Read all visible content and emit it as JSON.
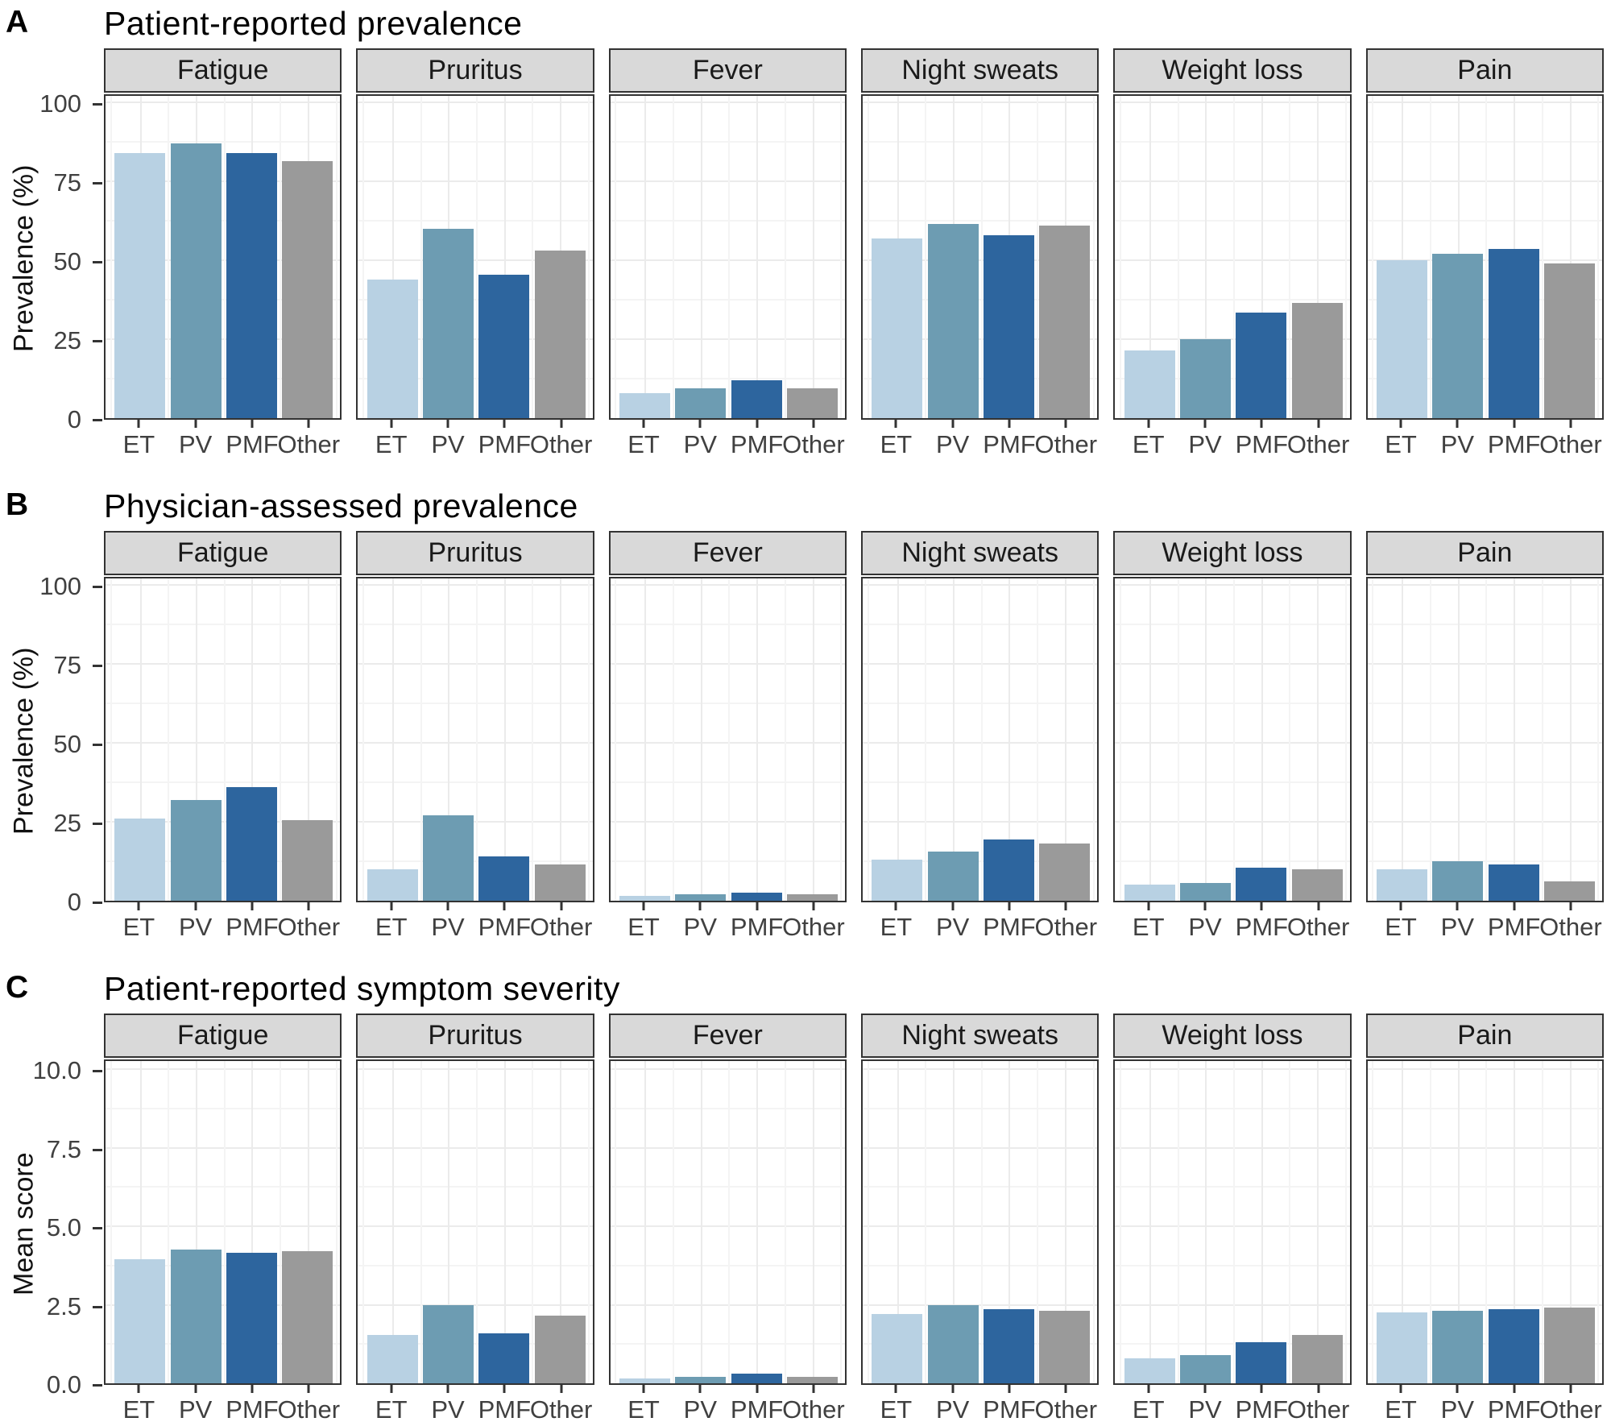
{
  "colors": {
    "series": [
      "#B8D1E3",
      "#6D9CB2",
      "#2D659E",
      "#9A9A9A"
    ],
    "strip_bg": "#D9D9D9",
    "strip_border": "#333333",
    "panel_border": "#333333",
    "grid_major": "#EBEBEB",
    "grid_minor": "#F4F4F4",
    "axis_text": "#404040",
    "tick_mark": "#333333",
    "title_text": "#000000"
  },
  "chart_data": [
    {
      "panel": "A",
      "type": "bar",
      "title": "Patient-reported prevalence",
      "ylabel": "Prevalence (%)",
      "ylim": [
        0,
        100
      ],
      "yticks": [
        0,
        25,
        50,
        75,
        100
      ],
      "ytick_labels": [
        "0",
        "25",
        "50",
        "75",
        "100"
      ],
      "grid": true,
      "legend": "none",
      "categories": [
        "ET",
        "PV",
        "PMF",
        "Other"
      ],
      "facets": [
        {
          "label": "Fatigue",
          "values": [
            84,
            87,
            84,
            81.5
          ]
        },
        {
          "label": "Pruritus",
          "values": [
            44,
            60,
            45.5,
            53
          ]
        },
        {
          "label": "Fever",
          "values": [
            8,
            9.5,
            12,
            9.5
          ]
        },
        {
          "label": "Night sweats",
          "values": [
            57,
            61.5,
            58,
            61
          ]
        },
        {
          "label": "Weight loss",
          "values": [
            21.5,
            25,
            33.5,
            36.5
          ]
        },
        {
          "label": "Pain",
          "values": [
            50,
            52,
            53.5,
            49
          ]
        }
      ]
    },
    {
      "panel": "B",
      "type": "bar",
      "title": "Physician-assessed prevalence",
      "ylabel": "Prevalence (%)",
      "ylim": [
        0,
        100
      ],
      "yticks": [
        0,
        25,
        50,
        75,
        100
      ],
      "ytick_labels": [
        "0",
        "25",
        "50",
        "75",
        "100"
      ],
      "grid": true,
      "legend": "none",
      "categories": [
        "ET",
        "PV",
        "PMF",
        "Other"
      ],
      "facets": [
        {
          "label": "Fatigue",
          "values": [
            26,
            32,
            36,
            25.5
          ]
        },
        {
          "label": "Pruritus",
          "values": [
            10,
            27,
            14,
            11.5
          ]
        },
        {
          "label": "Fever",
          "values": [
            1.5,
            2,
            2.5,
            2
          ]
        },
        {
          "label": "Night sweats",
          "values": [
            13,
            15.5,
            19.5,
            18
          ]
        },
        {
          "label": "Weight loss",
          "values": [
            5,
            5.5,
            10.5,
            10
          ]
        },
        {
          "label": "Pain",
          "values": [
            10,
            12.5,
            11.5,
            6
          ]
        }
      ]
    },
    {
      "panel": "C",
      "type": "bar",
      "title": "Patient-reported symptom severity",
      "ylabel": "Mean score",
      "ylim": [
        0,
        10
      ],
      "yticks": [
        0,
        2.5,
        5,
        7.5,
        10
      ],
      "ytick_labels": [
        "0.0",
        "2.5",
        "5.0",
        "7.5",
        "10.0"
      ],
      "grid": true,
      "legend": "none",
      "categories": [
        "ET",
        "PV",
        "PMF",
        "Other"
      ],
      "facets": [
        {
          "label": "Fatigue",
          "values": [
            3.95,
            4.25,
            4.15,
            4.2
          ]
        },
        {
          "label": "Pruritus",
          "values": [
            1.55,
            2.5,
            1.6,
            2.15
          ]
        },
        {
          "label": "Fever",
          "values": [
            0.15,
            0.2,
            0.3,
            0.2
          ]
        },
        {
          "label": "Night sweats",
          "values": [
            2.2,
            2.5,
            2.35,
            2.3
          ]
        },
        {
          "label": "Weight loss",
          "values": [
            0.8,
            0.9,
            1.3,
            1.55
          ]
        },
        {
          "label": "Pain",
          "values": [
            2.25,
            2.3,
            2.35,
            2.4
          ]
        }
      ]
    }
  ]
}
